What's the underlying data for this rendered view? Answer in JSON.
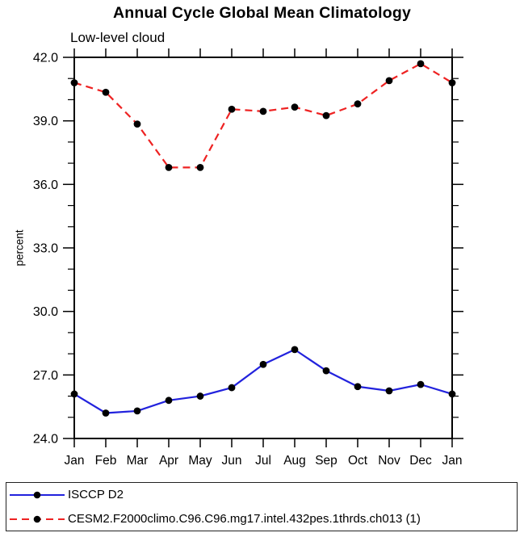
{
  "chart_data": {
    "type": "line",
    "title": "Annual Cycle Global Mean Climatology",
    "subtitle": "Low-level cloud",
    "ylabel": "percent",
    "xlabel": "",
    "ylim": [
      24.0,
      42.0
    ],
    "grid": false,
    "legend_position": "bottom",
    "categories": [
      "Jan",
      "Feb",
      "Mar",
      "Apr",
      "May",
      "Jun",
      "Jul",
      "Aug",
      "Sep",
      "Oct",
      "Nov",
      "Dec",
      "Jan"
    ],
    "yticks": {
      "major": [
        24,
        27,
        30,
        33,
        36,
        39,
        42
      ],
      "labels": [
        "24.0",
        "27.0",
        "30.0",
        "33.0",
        "36.0",
        "39.0",
        "42.0"
      ],
      "minor": [
        25,
        26,
        28,
        29,
        31,
        32,
        34,
        35,
        37,
        38,
        40,
        41
      ]
    },
    "axis_color": "#000000",
    "series": [
      {
        "name": "ISCCP D2",
        "color": "#2222dd",
        "style": "solid",
        "dash": "",
        "marker": "filled-circle",
        "marker_color": "#000000",
        "values": [
          26.1,
          25.2,
          25.3,
          25.8,
          26.0,
          26.4,
          27.5,
          28.2,
          27.2,
          26.45,
          26.25,
          26.55,
          26.1
        ]
      },
      {
        "name": "CESM2.F2000climo.C96.C96.mg17.intel.432pes.1thrds.ch013 (1)",
        "color": "#ee2222",
        "style": "dashed",
        "dash": "9,6",
        "marker": "filled-circle",
        "marker_color": "#000000",
        "values": [
          40.8,
          40.35,
          38.85,
          36.8,
          36.8,
          39.55,
          39.45,
          39.65,
          39.25,
          39.8,
          40.9,
          41.7,
          40.8
        ]
      }
    ]
  }
}
